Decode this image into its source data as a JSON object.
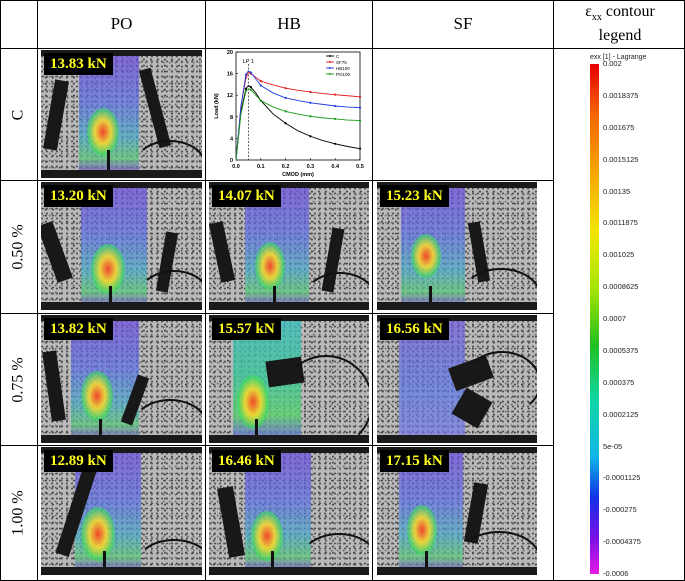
{
  "columns": [
    "PO",
    "HB",
    "SF"
  ],
  "legend_title": {
    "line1_pre": "ε",
    "line1_sub": "xx",
    "line1_post": " contour",
    "line2": "legend"
  },
  "rows": [
    {
      "label": "C",
      "cells": [
        {
          "load": "13.83 kN"
        },
        null,
        null
      ]
    },
    {
      "label": "0.50 %",
      "cells": [
        {
          "load": "13.20 kN"
        },
        {
          "load": "14.07 kN"
        },
        {
          "load": "15.23 kN"
        }
      ]
    },
    {
      "label": "0.75 %",
      "cells": [
        {
          "load": "13.82 kN"
        },
        {
          "load": "15.57 kN"
        },
        {
          "load": "16.56 kN"
        }
      ]
    },
    {
      "label": "1.00 %",
      "cells": [
        {
          "load": "12.89 kN"
        },
        {
          "load": "16.46 kN"
        },
        {
          "load": "17.15 kN"
        }
      ]
    }
  ],
  "colorbar": {
    "title": "exx [1] - Lagrange",
    "ticks": [
      "0.002",
      "0.0018375",
      "0.001675",
      "0.0015125",
      "0.00135",
      "0.0011875",
      "0.001025",
      "0.0008625",
      "0.0007",
      "0.0005375",
      "0.000375",
      "0.0002125",
      "5e-05",
      "-0.0001125",
      "-0.000275",
      "-0.0004375",
      "-0.0006"
    ]
  },
  "chart_data": {
    "type": "line",
    "xlabel": "CMOD (mm)",
    "ylabel": "Load (kN)",
    "xlim": [
      0,
      0.5
    ],
    "ylim": [
      0,
      20
    ],
    "xticks": [
      "0.0",
      "0.1",
      "0.2",
      "0.3",
      "0.4",
      "0.5"
    ],
    "yticks": [
      "0",
      "4",
      "8",
      "12",
      "16",
      "20"
    ],
    "annotation": "LP 1",
    "annotation_x": 0.05,
    "legend_position": "top-right",
    "series": [
      {
        "name": "C",
        "color": "#000000",
        "x": [
          0,
          0.02,
          0.04,
          0.05,
          0.06,
          0.08,
          0.1,
          0.15,
          0.2,
          0.25,
          0.3,
          0.35,
          0.4,
          0.45,
          0.5
        ],
        "y": [
          0,
          9,
          13.2,
          13.8,
          13.5,
          12.4,
          11.0,
          8.5,
          6.8,
          5.4,
          4.4,
          3.6,
          3.0,
          2.5,
          2.1
        ]
      },
      {
        "name": "SF75",
        "color": "#e41a1c",
        "x": [
          0,
          0.02,
          0.04,
          0.05,
          0.06,
          0.08,
          0.1,
          0.15,
          0.2,
          0.25,
          0.3,
          0.35,
          0.4,
          0.45,
          0.5
        ],
        "y": [
          0,
          10,
          15.2,
          16.2,
          16.0,
          15.3,
          14.6,
          13.9,
          13.3,
          12.9,
          12.6,
          12.3,
          12.1,
          11.9,
          11.7
        ]
      },
      {
        "name": "HB100",
        "color": "#1f3fe0",
        "x": [
          0,
          0.02,
          0.04,
          0.05,
          0.06,
          0.08,
          0.1,
          0.15,
          0.2,
          0.25,
          0.3,
          0.35,
          0.4,
          0.45,
          0.5
        ],
        "y": [
          0,
          10,
          15.8,
          16.5,
          16.2,
          15.0,
          13.8,
          12.4,
          11.5,
          11.0,
          10.6,
          10.3,
          10.0,
          9.8,
          9.7
        ]
      },
      {
        "name": "PO100",
        "color": "#1a9e1a",
        "x": [
          0,
          0.02,
          0.04,
          0.05,
          0.06,
          0.08,
          0.1,
          0.15,
          0.2,
          0.25,
          0.3,
          0.35,
          0.4,
          0.45,
          0.5
        ],
        "y": [
          0,
          8.5,
          12.8,
          13.2,
          13.0,
          12.0,
          11.0,
          9.8,
          9.0,
          8.5,
          8.1,
          7.8,
          7.6,
          7.4,
          7.3
        ]
      }
    ]
  }
}
